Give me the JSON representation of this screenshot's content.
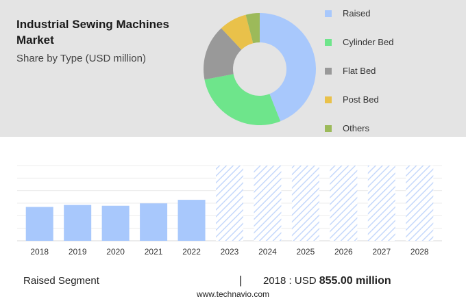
{
  "header": {
    "title": "Industrial Sewing Machines Market",
    "subtitle": "Share by Type (USD million)"
  },
  "legend": [
    {
      "label": "Raised",
      "color": "#a8c8fc"
    },
    {
      "label": "Cylinder Bed",
      "color": "#6ee58b"
    },
    {
      "label": "Flat Bed",
      "color": "#999999"
    },
    {
      "label": "Post Bed",
      "color": "#e9c14a"
    },
    {
      "label": "Others",
      "color": "#9cba5a"
    }
  ],
  "footer": {
    "segment_label": "Raised Segment",
    "separator": "|",
    "year_prefix": "2018 : USD",
    "value": "855.00 million",
    "source": "www.technavio.com"
  },
  "chart_data": [
    {
      "type": "pie",
      "categories": [
        "Raised",
        "Cylinder Bed",
        "Flat Bed",
        "Post Bed",
        "Others"
      ],
      "values": [
        44,
        28,
        16,
        8,
        4
      ],
      "colors": [
        "#a8c8fc",
        "#6ee58b",
        "#999999",
        "#e9c14a",
        "#9cba5a"
      ]
    },
    {
      "type": "bar",
      "categories": [
        "2018",
        "2019",
        "2020",
        "2021",
        "2022",
        "2023",
        "2024",
        "2025",
        "2026",
        "2027",
        "2028"
      ],
      "values": [
        855,
        905,
        885,
        945,
        1035,
        null,
        null,
        null,
        null,
        null,
        null
      ],
      "forecast_categories": [
        "2023",
        "2024",
        "2025",
        "2026",
        "2027",
        "2028"
      ],
      "ylim": [
        0,
        1900
      ],
      "grid": true,
      "bar_color": "#a8c8fc",
      "forecast_pattern_color": "#c5d8fb"
    }
  ]
}
